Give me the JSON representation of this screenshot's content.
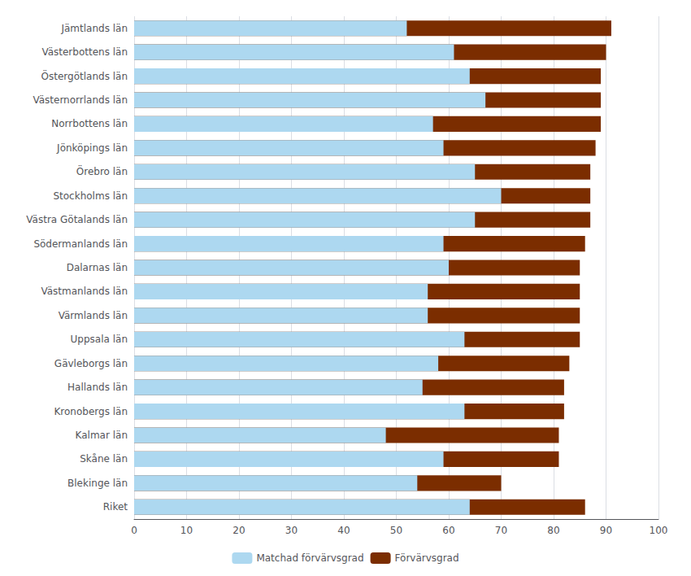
{
  "chart_data": {
    "type": "bar",
    "orientation": "horizontal",
    "stacked": false,
    "categories": [
      "Jämtlands län",
      "Västerbottens län",
      "Östergötlands län",
      "Västernorrlands län",
      "Norrbottens län",
      "Jönköpings län",
      "Örebro län",
      "Stockholms län",
      "Västra Götalands län",
      "Södermanlands län",
      "Dalarnas län",
      "Västmanlands län",
      "Värmlands län",
      "Uppsala län",
      "Gävleborgs län",
      "Hallands län",
      "Kronobergs län",
      "Kalmar län",
      "Skåne län",
      "Blekinge län",
      "Riket"
    ],
    "series": [
      {
        "name": "Matchad förvärvsgrad",
        "color": "#add8f0",
        "values": [
          52,
          61,
          64,
          67,
          57,
          59,
          65,
          70,
          65,
          59,
          60,
          56,
          56,
          63,
          58,
          55,
          63,
          48,
          59,
          54,
          64
        ]
      },
      {
        "name": "Förvärvsgrad",
        "color": "#7B2D00",
        "values": [
          91,
          90,
          89,
          89,
          89,
          88,
          87,
          87,
          87,
          86,
          85,
          85,
          85,
          85,
          83,
          82,
          82,
          81,
          81,
          70,
          86
        ]
      }
    ],
    "xlim": [
      0,
      100
    ],
    "xticks": [
      0,
      10,
      20,
      30,
      40,
      50,
      60,
      70,
      80,
      90,
      100
    ],
    "grid": true,
    "legend": "bottom"
  }
}
